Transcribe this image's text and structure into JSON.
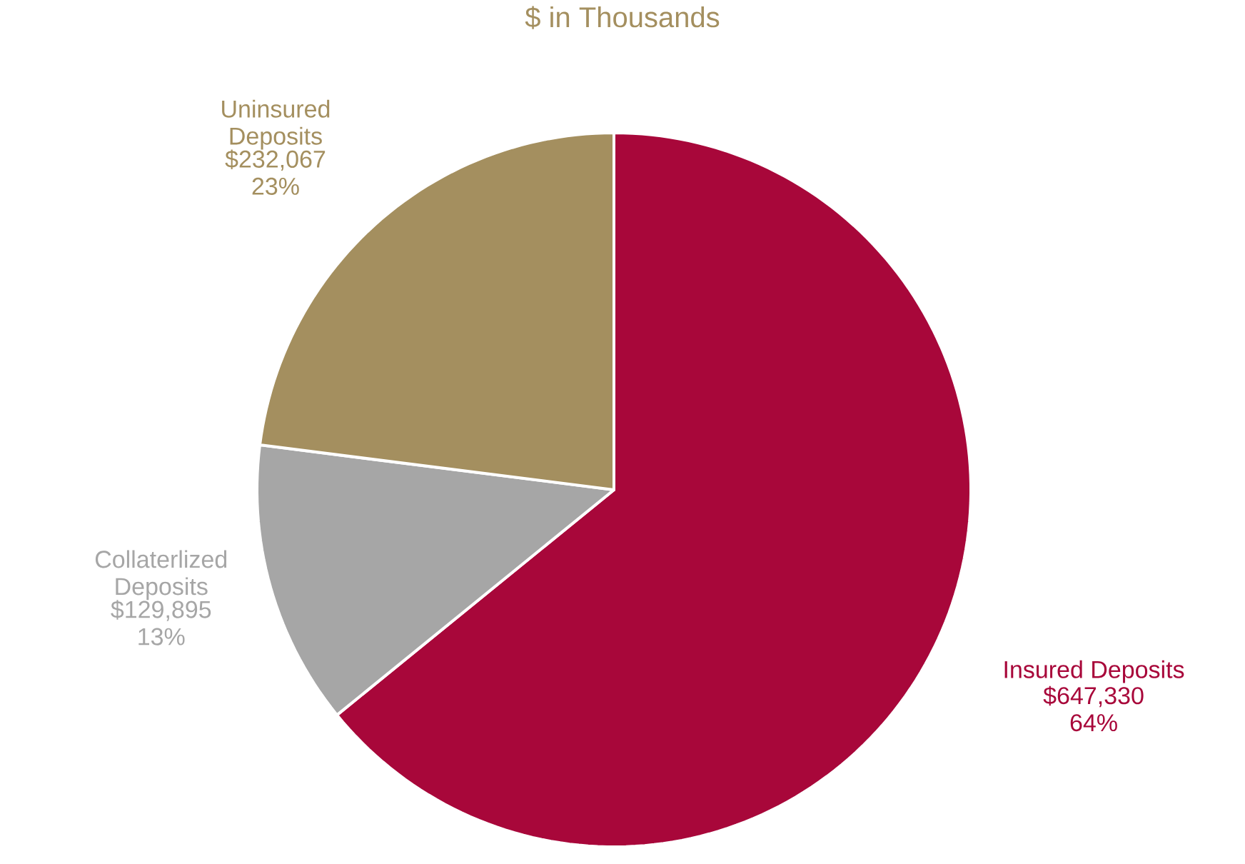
{
  "chart_data": {
    "type": "pie",
    "title": "$ in Thousands",
    "categories": [
      "Insured Deposits",
      "Collaterlized Deposits",
      "Uninsured Deposits"
    ],
    "values": [
      647330,
      129895,
      232067
    ],
    "value_labels": [
      "$647,330 64%",
      "$129,895 13%",
      "$232,067 23%"
    ],
    "colors": [
      "#a8073a",
      "#a6a6a6",
      "#a48f5f"
    ]
  }
}
